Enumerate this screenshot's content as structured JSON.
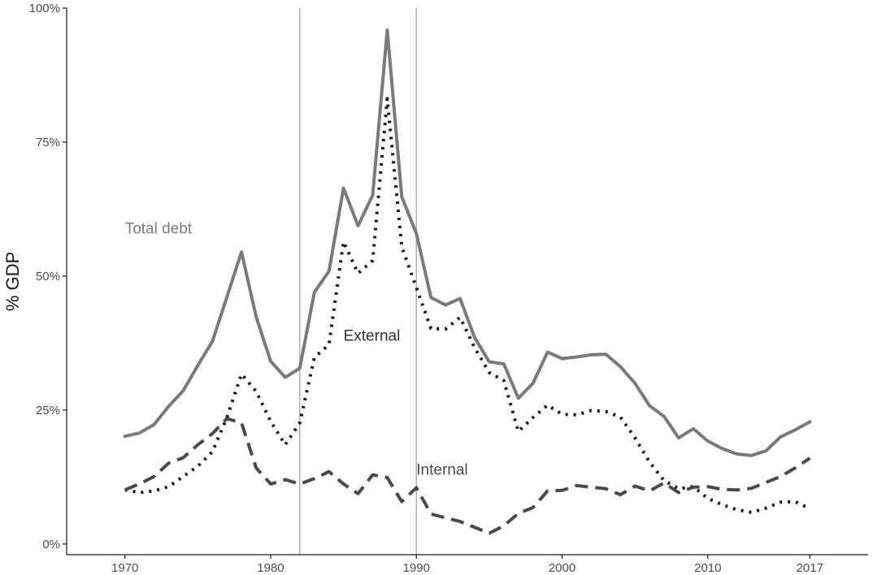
{
  "chart_data": {
    "type": "line",
    "title": "",
    "xlabel": "",
    "ylabel": "% GDP",
    "xlim": [
      1966,
      2021
    ],
    "ylim": [
      -2,
      100
    ],
    "x_ticks": [
      1970,
      1980,
      1990,
      2000,
      2010,
      2017
    ],
    "x_tick_labels": [
      "1970",
      "1980",
      "1990",
      "2000",
      "2010",
      "2017"
    ],
    "y_ticks": [
      0,
      25,
      50,
      75,
      100
    ],
    "y_tick_labels": [
      "0%",
      "25%",
      "50%",
      "75%",
      "100%"
    ],
    "grid": false,
    "legend": "none",
    "reference_lines_x": [
      1982,
      1990
    ],
    "reference_line_color": "#a6a6a6",
    "annotations": [
      {
        "text": "Total debt",
        "x": 1970,
        "y": 59,
        "color": "#7f7f7f"
      },
      {
        "text": "External",
        "x": 1985,
        "y": 39,
        "color": "#333333"
      },
      {
        "text": "Internal",
        "x": 1990,
        "y": 14,
        "color": "#4d4d4d"
      }
    ],
    "series": [
      {
        "style": "solid",
        "color": "#7a7a7a",
        "x": [
          1970,
          1971,
          1972,
          1973,
          1974,
          1975,
          1976,
          1977,
          1978,
          1979,
          1980,
          1981,
          1982,
          1983,
          1984,
          1985,
          1986,
          1987,
          1988,
          1989,
          1990,
          1991,
          1992,
          1993,
          1994,
          1995,
          1996,
          1997,
          1998,
          1999,
          2000,
          2001,
          2002,
          2003,
          2004,
          2005,
          2006,
          2007,
          2008,
          2009,
          2010,
          2011,
          2012,
          2013,
          2014,
          2015,
          2016,
          2017
        ],
        "values": [
          20.1,
          20.7,
          22.3,
          25.7,
          28.6,
          33.3,
          37.8,
          46.1,
          54.5,
          42.4,
          34.1,
          31.1,
          32.8,
          47.0,
          50.9,
          66.4,
          59.4,
          65.1,
          95.9,
          64.8,
          57.9,
          46.0,
          44.6,
          45.8,
          38.5,
          34.0,
          33.6,
          27.2,
          30.0,
          35.8,
          34.6,
          34.9,
          35.3,
          35.4,
          33.1,
          30.0,
          25.8,
          23.8,
          19.8,
          21.5,
          19.2,
          17.8,
          16.8,
          16.5,
          17.4,
          20.0,
          21.3,
          22.8
        ]
      },
      {
        "style": "dotted",
        "color": "#1a1a1a",
        "x": [
          1970,
          1971,
          1972,
          1973,
          1974,
          1975,
          1976,
          1977,
          1978,
          1979,
          1980,
          1981,
          1982,
          1983,
          1984,
          1985,
          1986,
          1987,
          1988,
          1989,
          1990,
          1991,
          1992,
          1993,
          1994,
          1995,
          1996,
          1997,
          1998,
          1999,
          2000,
          2001,
          2002,
          2003,
          2004,
          2005,
          2006,
          2007,
          2008,
          2009,
          2010,
          2011,
          2012,
          2013,
          2014,
          2015,
          2016,
          2017
        ],
        "values": [
          10.1,
          9.6,
          9.9,
          10.7,
          12.6,
          14.5,
          17.2,
          23.6,
          31.7,
          28.5,
          22.9,
          18.5,
          22.6,
          34.8,
          37.2,
          56.4,
          50.5,
          52.9,
          83.1,
          55.4,
          47.8,
          40.2,
          40.1,
          42.3,
          36.6,
          32.0,
          30.5,
          21.0,
          23.6,
          25.9,
          24.2,
          24.1,
          24.9,
          24.7,
          23.7,
          19.8,
          15.3,
          11.8,
          10.3,
          10.7,
          8.5,
          7.3,
          6.4,
          5.9,
          6.7,
          7.8,
          7.9,
          6.6
        ]
      },
      {
        "style": "dashed",
        "color": "#4a4a4a",
        "x": [
          1970,
          1971,
          1972,
          1973,
          1974,
          1975,
          1976,
          1977,
          1978,
          1979,
          1980,
          1981,
          1982,
          1983,
          1984,
          1985,
          1986,
          1987,
          1988,
          1989,
          1990,
          1991,
          1992,
          1993,
          1994,
          1995,
          1996,
          1997,
          1998,
          1999,
          2000,
          2001,
          2002,
          2003,
          2004,
          2005,
          2006,
          2007,
          2008,
          2009,
          2010,
          2011,
          2012,
          2013,
          2014,
          2015,
          2016,
          2017
        ],
        "values": [
          10.1,
          11.2,
          12.6,
          15.1,
          16.1,
          18.5,
          20.6,
          23.4,
          22.6,
          14.2,
          11.2,
          12.0,
          11.2,
          12.2,
          13.5,
          11.2,
          9.4,
          12.9,
          12.4,
          7.9,
          10.5,
          5.6,
          4.9,
          4.2,
          3.1,
          2.0,
          3.4,
          5.7,
          6.8,
          9.9,
          10.0,
          10.9,
          10.6,
          10.3,
          9.2,
          10.8,
          9.9,
          11.4,
          9.6,
          10.6,
          10.7,
          10.2,
          10.1,
          10.4,
          11.5,
          12.6,
          14.2,
          16.0
        ]
      }
    ]
  }
}
